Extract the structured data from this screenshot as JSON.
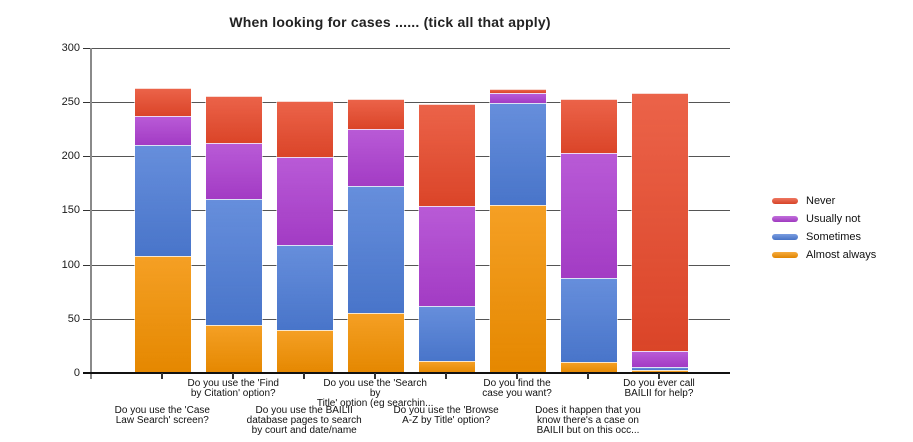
{
  "title": "When looking for cases ...... (tick all that apply)",
  "chart_data": {
    "type": "bar",
    "stacked": true,
    "title": "When looking for cases ...... (tick all that apply)",
    "categories": [
      "Do you use the 'Case\nLaw Search' screen?",
      "Do you use the 'Find\nby Citation' option?",
      "Do you use the BAILII\ndatabase pages to search\nby court and date/name",
      "Do you use the 'Search\nby\nTitle' option (eg searchin...",
      "Do you use the 'Browse\nA-Z by Title' option?",
      "Do you find the\ncase you want?",
      "Does it happen that you\nknow there's a case on\nBAILII but on this occ...",
      "Do you ever call\nBAILII for help?"
    ],
    "series": [
      {
        "name": "Almost always",
        "color": "#f39000",
        "values": [
          108,
          44,
          40,
          55,
          11,
          155,
          10,
          3
        ]
      },
      {
        "name": "Sometimes",
        "color": "#4d7cd6",
        "values": [
          102,
          116,
          78,
          117,
          51,
          94,
          78,
          3
        ]
      },
      {
        "name": "Usually not",
        "color": "#ad3fd0",
        "values": [
          27,
          52,
          81,
          53,
          92,
          9,
          115,
          14
        ]
      },
      {
        "name": "Never",
        "color": "#e8492b",
        "values": [
          26,
          43,
          52,
          28,
          94,
          4,
          50,
          238
        ]
      }
    ],
    "totals": [
      263,
      255,
      251,
      253,
      248,
      262,
      253,
      258
    ],
    "xlabel": "",
    "ylabel": "",
    "ylim": [
      0,
      300
    ],
    "yticks": [
      0,
      50,
      100,
      150,
      200,
      250,
      300
    ],
    "grid": true,
    "legend_position": "right",
    "legend_order": [
      "Never",
      "Usually not",
      "Sometimes",
      "Almost always"
    ]
  }
}
